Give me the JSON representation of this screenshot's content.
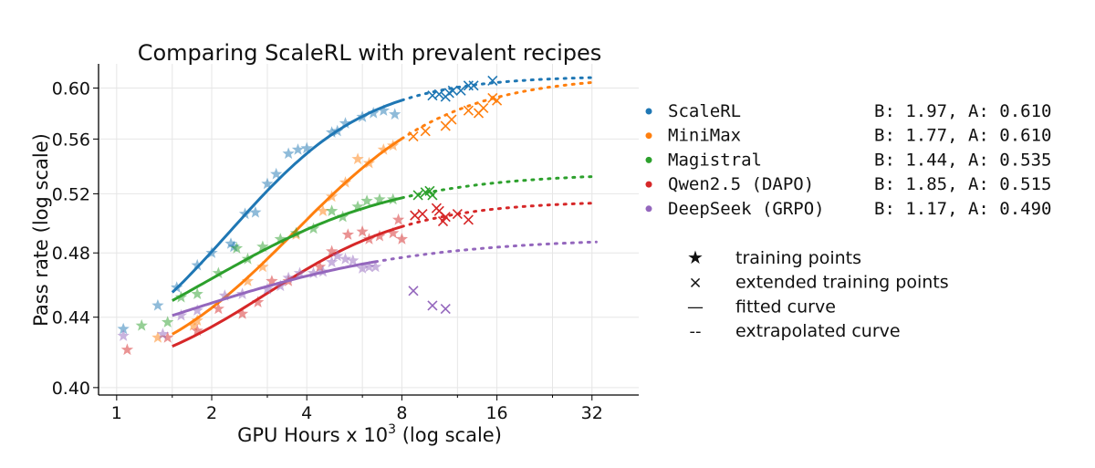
{
  "chart_data": {
    "type": "scatter",
    "title": "Comparing ScaleRL with prevalent recipes",
    "xlabel_prefix": "GPU Hours x 10",
    "xlabel_sup": "3",
    "xlabel_suffix": " (log scale)",
    "ylabel": "Pass rate (log scale)",
    "x_scale": "log2",
    "y_scale": "log",
    "xlim": [
      0.9,
      45
    ],
    "ylim": [
      0.396,
      0.62
    ],
    "x_ticks": [
      1,
      2,
      4,
      8,
      16,
      32
    ],
    "x_tick_labels": [
      "1",
      "2",
      "4",
      "8",
      "16",
      "32"
    ],
    "x_minor_grid": [
      1.5,
      3,
      6,
      12,
      24
    ],
    "y_ticks": [
      0.4,
      0.44,
      0.48,
      0.52,
      0.56,
      0.6
    ],
    "y_tick_labels": [
      "0.40",
      "0.44",
      "0.48",
      "0.52",
      "0.56",
      "0.60"
    ],
    "grid": true,
    "legend_placement": "right",
    "series": [
      {
        "name": "ScaleRL",
        "params": "B: 1.97, A: 0.610",
        "color": "#1f77b4",
        "B": 1.97,
        "A": 0.61,
        "fit_range": [
          1.5,
          8
        ],
        "extrap_end": 33,
        "training_points": [
          [
            1.05,
            0.433
          ],
          [
            1.35,
            0.447
          ],
          [
            1.55,
            0.458
          ],
          [
            1.8,
            0.472
          ],
          [
            2.0,
            0.48
          ],
          [
            2.3,
            0.486
          ],
          [
            2.35,
            0.484
          ],
          [
            2.55,
            0.506
          ],
          [
            2.75,
            0.507
          ],
          [
            3.0,
            0.527
          ],
          [
            3.2,
            0.534
          ],
          [
            3.5,
            0.549
          ],
          [
            3.75,
            0.552
          ],
          [
            4.0,
            0.553
          ],
          [
            4.8,
            0.565
          ],
          [
            5.0,
            0.566
          ],
          [
            5.3,
            0.572
          ],
          [
            6.0,
            0.577
          ],
          [
            6.5,
            0.58
          ],
          [
            7.0,
            0.582
          ],
          [
            7.6,
            0.579
          ]
        ],
        "extended_points": [
          [
            10,
            0.594
          ],
          [
            10.5,
            0.595
          ],
          [
            11,
            0.593
          ],
          [
            11.3,
            0.596
          ],
          [
            11.6,
            0.598
          ],
          [
            12.3,
            0.598
          ],
          [
            13,
            0.602
          ],
          [
            13.5,
            0.602
          ],
          [
            15.5,
            0.606
          ]
        ]
      },
      {
        "name": "MiniMax",
        "params": "B: 1.77, A: 0.610",
        "color": "#ff7f0e",
        "B": 1.77,
        "A": 0.61,
        "fit_range": [
          1.5,
          8
        ],
        "extrap_end": 33,
        "training_points": [
          [
            1.35,
            0.428
          ],
          [
            1.75,
            0.435
          ],
          [
            1.8,
            0.438
          ],
          [
            2.6,
            0.462
          ],
          [
            2.9,
            0.471
          ],
          [
            3.7,
            0.492
          ],
          [
            4.5,
            0.508
          ],
          [
            4.8,
            0.518
          ],
          [
            5.3,
            0.528
          ],
          [
            5.8,
            0.545
          ],
          [
            6.3,
            0.542
          ],
          [
            7.0,
            0.552
          ],
          [
            7.5,
            0.555
          ]
        ],
        "extended_points": [
          [
            8.7,
            0.562
          ],
          [
            9.5,
            0.566
          ],
          [
            11,
            0.57
          ],
          [
            11.5,
            0.575
          ],
          [
            13,
            0.582
          ],
          [
            14,
            0.58
          ],
          [
            14.5,
            0.584
          ],
          [
            15.5,
            0.592
          ],
          [
            16,
            0.59
          ]
        ]
      },
      {
        "name": "Magistral",
        "params": "B: 1.44, A: 0.535",
        "color": "#2ca02c",
        "B": 1.44,
        "A": 0.535,
        "fit_range": [
          1.5,
          8
        ],
        "extrap_end": 33,
        "training_points": [
          [
            1.2,
            0.435
          ],
          [
            1.45,
            0.437
          ],
          [
            1.6,
            0.452
          ],
          [
            1.8,
            0.454
          ],
          [
            2.1,
            0.467
          ],
          [
            2.4,
            0.483
          ],
          [
            2.6,
            0.476
          ],
          [
            2.9,
            0.484
          ],
          [
            3.3,
            0.489
          ],
          [
            3.7,
            0.493
          ],
          [
            4.2,
            0.496
          ],
          [
            4.8,
            0.508
          ],
          [
            5.2,
            0.504
          ],
          [
            5.8,
            0.511
          ],
          [
            6.2,
            0.515
          ],
          [
            6.8,
            0.516
          ],
          [
            7.5,
            0.516
          ]
        ],
        "extended_points": [
          [
            9,
            0.519
          ],
          [
            9.5,
            0.521
          ],
          [
            10,
            0.519
          ],
          [
            9.8,
            0.522
          ]
        ]
      },
      {
        "name": "Qwen2.5 (DAPO)",
        "params": "B: 1.85, A: 0.515",
        "color": "#d62728",
        "B": 1.85,
        "A": 0.515,
        "fit_range": [
          1.5,
          8
        ],
        "extrap_end": 33,
        "training_points": [
          [
            1.08,
            0.421
          ],
          [
            1.45,
            0.428
          ],
          [
            1.8,
            0.432
          ],
          [
            2.1,
            0.445
          ],
          [
            2.5,
            0.442
          ],
          [
            2.8,
            0.449
          ],
          [
            3.1,
            0.462
          ],
          [
            3.5,
            0.462
          ],
          [
            4.4,
            0.471
          ],
          [
            4.8,
            0.481
          ],
          [
            5.4,
            0.492
          ],
          [
            6.0,
            0.494
          ],
          [
            6.3,
            0.489
          ],
          [
            6.8,
            0.491
          ],
          [
            7.5,
            0.493
          ],
          [
            8.0,
            0.489
          ],
          [
            7.8,
            0.502
          ]
        ],
        "extended_points": [
          [
            8.8,
            0.505
          ],
          [
            9.3,
            0.506
          ],
          [
            10.3,
            0.51
          ],
          [
            10.5,
            0.508
          ],
          [
            10.8,
            0.501
          ],
          [
            11,
            0.504
          ],
          [
            12,
            0.506
          ],
          [
            13,
            0.502
          ]
        ]
      },
      {
        "name": "DeepSeek (GRPO)",
        "params": "B: 1.17, A: 0.490",
        "color": "#9467bd",
        "B": 1.17,
        "A": 0.49,
        "fit_range": [
          1.5,
          6.6
        ],
        "extrap_end": 33,
        "training_points": [
          [
            1.05,
            0.429
          ],
          [
            1.4,
            0.43
          ],
          [
            1.6,
            0.441
          ],
          [
            1.8,
            0.444
          ],
          [
            2.2,
            0.453
          ],
          [
            2.5,
            0.454
          ],
          [
            3.0,
            0.457
          ],
          [
            3.3,
            0.459
          ],
          [
            3.5,
            0.464
          ],
          [
            3.8,
            0.467
          ],
          [
            4.2,
            0.467
          ],
          [
            4.5,
            0.468
          ],
          [
            4.8,
            0.474
          ],
          [
            5.0,
            0.478
          ],
          [
            5.3,
            0.476
          ],
          [
            5.6,
            0.475
          ],
          [
            6.0,
            0.47
          ],
          [
            6.3,
            0.471
          ],
          [
            6.6,
            0.471
          ]
        ],
        "extended_points": [
          [
            8.7,
            0.456
          ],
          [
            10,
            0.447
          ],
          [
            11,
            0.445
          ]
        ]
      }
    ],
    "marker_legend": [
      {
        "symbol": "★",
        "label": "training points"
      },
      {
        "symbol": "×",
        "label": "extended training points"
      },
      {
        "symbol": "—",
        "label": "fitted curve"
      },
      {
        "symbol": "--",
        "label": "extrapolated curve"
      }
    ]
  }
}
